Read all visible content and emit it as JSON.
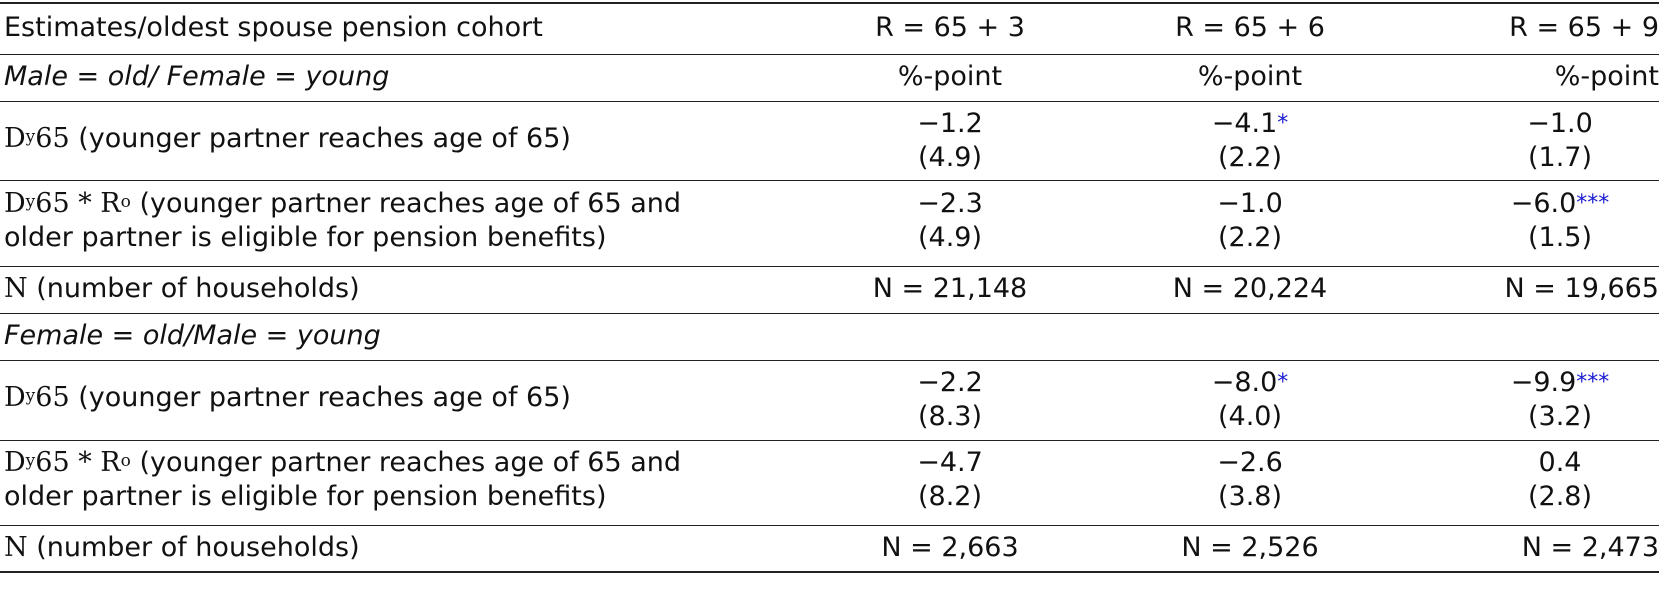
{
  "header": {
    "title": "Estimates/oldest spouse pension cohort",
    "columns": [
      "R = 65 + 3",
      "R = 65 + 6",
      "R = 65 + 9"
    ]
  },
  "sections": [
    {
      "title": "Male = old/ Female = young",
      "units": [
        "%-point",
        "%-point",
        "%-point"
      ],
      "rows": [
        {
          "label_math": "D",
          "label_sup": "y",
          "label_math2": "65",
          "label_text": " (younger partner reaches age of 65)",
          "values": [
            {
              "est": "−1.2",
              "stars": "",
              "se": "(4.9)"
            },
            {
              "est": "−4.1",
              "stars": "*",
              "se": "(2.2)"
            },
            {
              "est": "−1.0",
              "stars": "",
              "se": "(1.7)"
            }
          ]
        },
        {
          "label_line1_pre": "D",
          "label_line1_sup1": "y",
          "label_line1_mid": "65 * R",
          "label_line1_sup2": "o",
          "label_line1_text": " (younger partner reaches age of 65 and",
          "label_line2": "older partner is eligible for pension benefits)",
          "values": [
            {
              "est": "−2.3",
              "stars": "",
              "se": "(4.9)"
            },
            {
              "est": "−1.0",
              "stars": "",
              "se": "(2.2)"
            },
            {
              "est": "−6.0",
              "stars": "***",
              "se": "(1.5)"
            }
          ]
        }
      ],
      "n_label_math": "N",
      "n_label_text": " (number of households)",
      "n_values": [
        "N = 21,148",
        "N = 20,224",
        "N = 19,665"
      ]
    },
    {
      "title": "Female = old/Male = young",
      "rows": [
        {
          "label_math": "D",
          "label_sup": "y",
          "label_math2": "65",
          "label_text": " (younger partner reaches age of 65)",
          "values": [
            {
              "est": "−2.2",
              "stars": "",
              "se": "(8.3)"
            },
            {
              "est": "−8.0",
              "stars": "*",
              "se": "(4.0)"
            },
            {
              "est": "−9.9",
              "stars": "***",
              "se": "(3.2)"
            }
          ]
        },
        {
          "label_line1_pre": "D",
          "label_line1_sup1": "y",
          "label_line1_mid": "65 * R",
          "label_line1_sup2": "o",
          "label_line1_text": " (younger partner reaches age of 65 and",
          "label_line2": "older partner is eligible for pension benefits)",
          "values": [
            {
              "est": "−4.7",
              "stars": "",
              "se": "(8.2)"
            },
            {
              "est": "−2.6",
              "stars": "",
              "se": "(3.8)"
            },
            {
              "est": "0.4",
              "stars": "",
              "se": "(2.8)"
            }
          ]
        }
      ],
      "n_label_math": "N",
      "n_label_text": " (number of households)",
      "n_values": [
        "N = 2,663",
        "N = 2,526",
        "N = 2,473"
      ]
    }
  ],
  "colors": {
    "stars": "#1a1ad0",
    "rules": "#222222"
  }
}
